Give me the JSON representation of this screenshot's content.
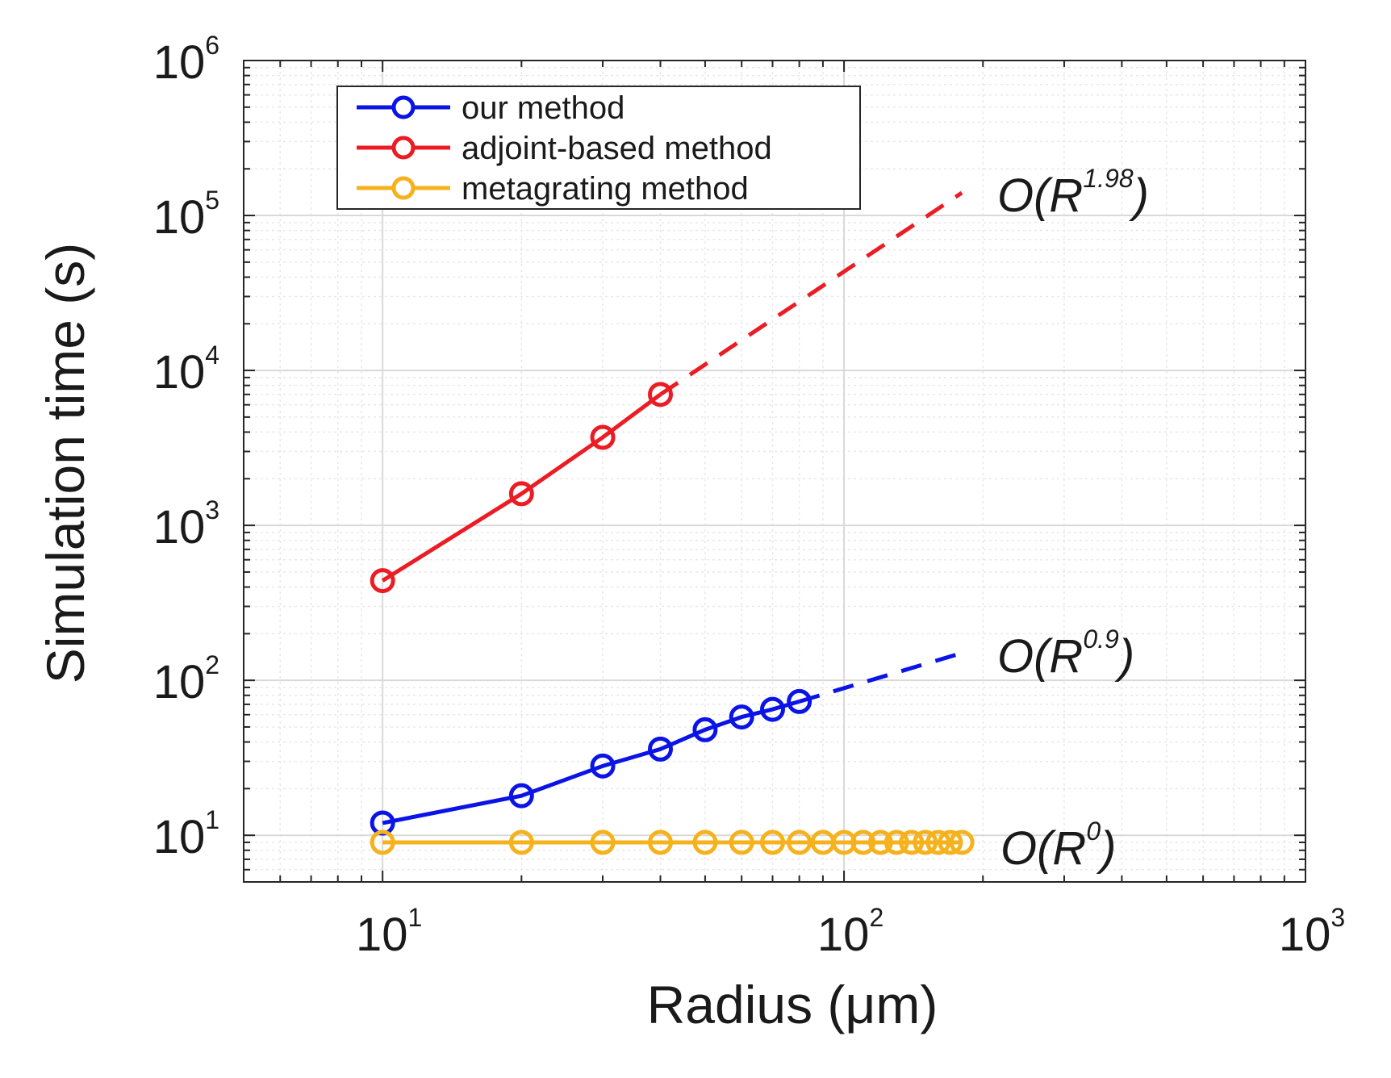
{
  "chart_data": {
    "type": "line",
    "title": "",
    "xlabel": "Radius (μm)",
    "ylabel": "Simulation time (s)",
    "xscale": "log",
    "yscale": "log",
    "xlim": [
      5,
      1000
    ],
    "ylim": [
      5,
      1000000
    ],
    "grid": true,
    "legend_position": "top-left",
    "x_ticks": [
      {
        "base": "10",
        "exp": "1"
      },
      {
        "base": "10",
        "exp": "2"
      },
      {
        "base": "10",
        "exp": "3"
      }
    ],
    "y_ticks": [
      {
        "base": "10",
        "exp": "1"
      },
      {
        "base": "10",
        "exp": "2"
      },
      {
        "base": "10",
        "exp": "3"
      },
      {
        "base": "10",
        "exp": "4"
      },
      {
        "base": "10",
        "exp": "5"
      },
      {
        "base": "10",
        "exp": "6"
      }
    ],
    "series": [
      {
        "name": "our method",
        "color": "#0a14e6",
        "x": [
          10,
          20,
          30,
          40,
          50,
          60,
          70,
          80
        ],
        "y": [
          12,
          18,
          28,
          36,
          48,
          58,
          65,
          73
        ],
        "extrapolation": {
          "x": [
            80,
            180
          ],
          "y": [
            73,
            150
          ]
        },
        "annotation": {
          "prefix": "O(R",
          "exp": "0.9",
          "suffix": ")"
        }
      },
      {
        "name": "adjoint-based method",
        "color": "#ec1c24",
        "x": [
          10,
          20,
          30,
          40
        ],
        "y": [
          440,
          1600,
          3700,
          7000
        ],
        "extrapolation": {
          "x": [
            40,
            180
          ],
          "y": [
            7000,
            140000
          ]
        },
        "annotation": {
          "prefix": "O(R",
          "exp": "1.98",
          "suffix": ")"
        }
      },
      {
        "name": "metagrating method",
        "color": "#f5b21c",
        "x": [
          10,
          20,
          30,
          40,
          50,
          60,
          70,
          80,
          90,
          100,
          110,
          120,
          130,
          140,
          150,
          160,
          170,
          180
        ],
        "y": [
          9,
          9,
          9,
          9,
          9,
          9,
          9,
          9,
          9,
          9,
          9,
          9,
          9,
          9,
          9,
          9,
          9,
          9
        ],
        "annotation": {
          "prefix": "O(R",
          "exp": "0",
          "suffix": ")"
        }
      }
    ]
  }
}
